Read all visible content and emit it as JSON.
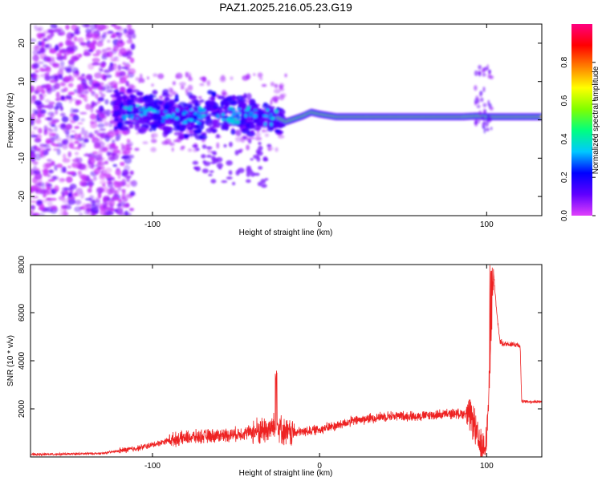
{
  "figure": {
    "title": "PAZ1.2025.216.05.23.G19"
  },
  "chart_data": [
    {
      "type": "heatmap",
      "title": "PAZ1.2025.216.05.23.G19",
      "xlabel": "Height of straight line (km)",
      "ylabel": "Frequency (Hz)",
      "xlim": [
        -173,
        133
      ],
      "ylim": [
        -25,
        25
      ],
      "xticks": [
        -100,
        0,
        100
      ],
      "yticks": [
        -20,
        -10,
        0,
        10,
        20
      ],
      "colorbar": {
        "label": "Normalized spectral amplitude",
        "range": [
          0,
          1
        ],
        "ticks": [
          0.0,
          0.2,
          0.4,
          0.6,
          0.8
        ],
        "colormap": [
          "#e040fb",
          "#5f00ff",
          "#0000ff",
          "#00c8ff",
          "#00ff80",
          "#80ff00",
          "#ffff00",
          "#ff8000",
          "#ff0000",
          "#ff0080"
        ]
      },
      "main_line": {
        "description_points_x": [
          -120,
          -100,
          -80,
          -60,
          -40,
          -25,
          -20,
          -10,
          -5,
          0,
          10,
          30,
          60,
          85,
          95,
          100,
          133
        ],
        "description_points_y": [
          2.2,
          1.5,
          1.0,
          1.5,
          1.0,
          0.5,
          -0.5,
          1.0,
          2.0,
          1.5,
          0.8,
          0.8,
          0.8,
          0.8,
          1.0,
          0.8,
          0.8
        ]
      },
      "grid": false
    },
    {
      "type": "line",
      "xlabel": "Height of straight line (km)",
      "ylabel": "SNR (10 * v/v)",
      "xlim": [
        -173,
        133
      ],
      "ylim": [
        0,
        8000
      ],
      "xticks": [
        -100,
        0,
        100
      ],
      "yticks": [
        2000,
        4000,
        6000,
        8000
      ],
      "series": [
        {
          "color": "#ee2222",
          "x": [
            -173,
            -150,
            -130,
            -120,
            -110,
            -100,
            -90,
            -80,
            -70,
            -60,
            -50,
            -45,
            -40,
            -35,
            -30,
            -27,
            -25,
            -22,
            -20,
            -15,
            -10,
            -5,
            0,
            10,
            20,
            30,
            40,
            50,
            60,
            70,
            80,
            88,
            92,
            95,
            97,
            100,
            103,
            104,
            106,
            108,
            110,
            115,
            120,
            121,
            125,
            133
          ],
          "y": [
            100,
            120,
            150,
            250,
            350,
            500,
            700,
            800,
            850,
            900,
            950,
            1000,
            1050,
            1100,
            1150,
            1250,
            1300,
            1100,
            1000,
            1000,
            1050,
            1100,
            1150,
            1300,
            1500,
            1600,
            1700,
            1700,
            1700,
            1750,
            1800,
            1800,
            1500,
            600,
            300,
            800,
            5000,
            7800,
            6000,
            4800,
            4700,
            4700,
            4650,
            2300,
            2300,
            2300
          ]
        }
      ],
      "annotations": [
        {
          "x": -26,
          "y": 3600
        },
        {
          "x": 103,
          "y": 7900
        }
      ],
      "grid": false
    }
  ]
}
